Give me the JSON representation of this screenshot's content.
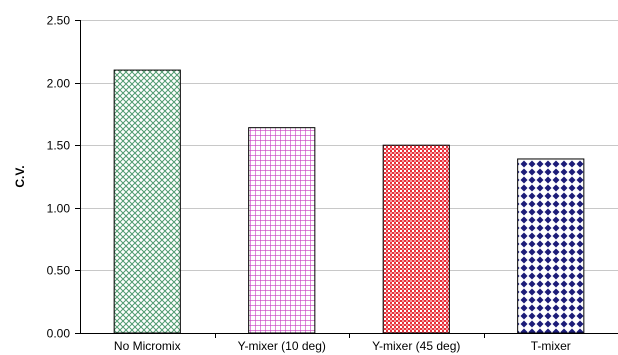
{
  "chart_data": {
    "type": "bar",
    "title": "",
    "xlabel": "",
    "ylabel": "C.V.",
    "ylim": [
      0,
      2.5
    ],
    "yticks": [
      "0.00",
      "0.50",
      "1.00",
      "1.50",
      "2.00",
      "2.50"
    ],
    "categories": [
      "No Micromix",
      "Y-mixer (10 deg)",
      "Y-mixer (45 deg)",
      "T-mixer"
    ],
    "values": [
      2.1,
      1.64,
      1.5,
      1.39
    ],
    "bar_colors": [
      "#4f9a6f",
      "#c83cc0",
      "#e8303a",
      "#1c1c78"
    ],
    "bar_patterns": [
      "diagonal-crosshatch",
      "square-grid",
      "fine-checker",
      "diamond"
    ],
    "grid": true,
    "legend": "none"
  }
}
